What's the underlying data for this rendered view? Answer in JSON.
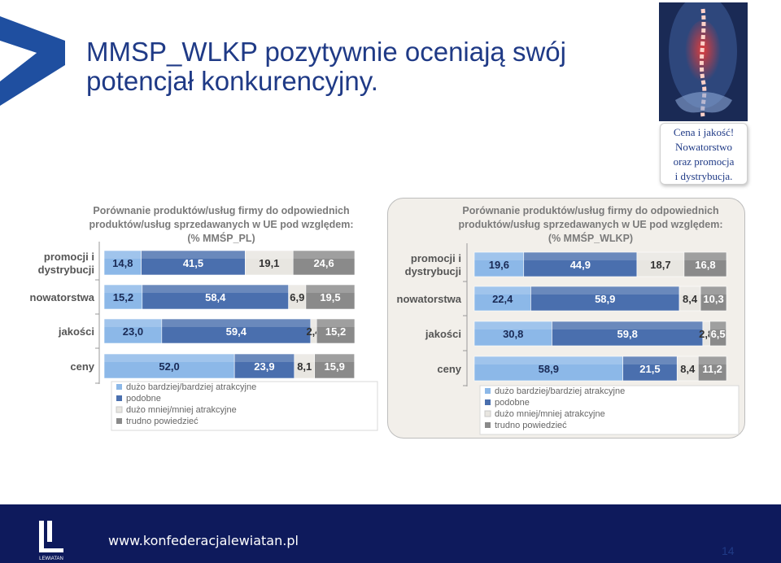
{
  "title": "MMSP_WLKP pozytywnie oceniają swój potencjał konkurencyjny.",
  "callout": [
    "Cena i jakość!",
    "Nowatorstwo",
    "oraz promocja",
    "i dystrybucja."
  ],
  "footer": {
    "url": "www.konfederacjalewiatan.pl",
    "page": "14",
    "logo_text": "LEWIATAN"
  },
  "colors": {
    "series": [
      "#8cb8e8",
      "#4a6fae",
      "#e8e6e1",
      "#8a8a8a"
    ],
    "title": "#1f3a86",
    "footer_bg": "#0e1a5c"
  },
  "chart_data": [
    {
      "type": "bar",
      "orientation": "horizontal",
      "stacked": true,
      "title": "Porównanie produktów/usług firmy do odpowiednich produktów/usług sprzedawanych w UE pod względem: (% MMŚP_PL)",
      "title_lines": [
        "Porównanie produktów/usług firmy do odpowiednich",
        "produktów/usług sprzedawanych w UE pod względem:",
        "(% MMŚP_PL)"
      ],
      "categories": [
        [
          "promocji i",
          "dystrybucji"
        ],
        [
          "nowatorstwa"
        ],
        [
          "jakości"
        ],
        [
          "ceny"
        ]
      ],
      "series": [
        {
          "name": "dużo bardziej/bardziej atrakcyjne",
          "values": [
            14.8,
            15.2,
            23.0,
            52.0
          ],
          "labels": [
            "14,8",
            "15,2",
            "23,0",
            "52,0"
          ]
        },
        {
          "name": "podobne",
          "values": [
            41.5,
            58.4,
            59.4,
            23.9
          ],
          "labels": [
            "41,5",
            "58,4",
            "59,4",
            "23,9"
          ]
        },
        {
          "name": "dużo mniej/mniej atrakcyjne",
          "values": [
            19.1,
            6.9,
            2.4,
            8.1
          ],
          "labels": [
            "19,1",
            "6,9",
            "2,4",
            "8,1"
          ]
        },
        {
          "name": "trudno powiedzieć",
          "values": [
            24.6,
            19.5,
            15.2,
            15.9
          ],
          "labels": [
            "24,6",
            "19,5",
            "15,2",
            "15,9"
          ]
        }
      ],
      "xlim": [
        0,
        100
      ],
      "legend": "bottom"
    },
    {
      "type": "bar",
      "orientation": "horizontal",
      "stacked": true,
      "title": "Porównanie produktów/usług firmy do odpowiednich produktów/usług sprzedawanych w UE pod względem: (% MMŚP_WLKP)",
      "title_lines": [
        "Porównanie produktów/usług firmy do odpowiednich",
        "produktów/usług sprzedawanych w UE pod względem:",
        "(% MMŚP_WLKP)"
      ],
      "categories": [
        [
          "promocji i",
          "dystrybucji"
        ],
        [
          "nowatorstwa"
        ],
        [
          "jakości"
        ],
        [
          "ceny"
        ]
      ],
      "series": [
        {
          "name": "dużo bardziej/bardziej atrakcyjne",
          "values": [
            19.6,
            22.4,
            30.8,
            58.9
          ],
          "labels": [
            "19,6",
            "22,4",
            "30,8",
            "58,9"
          ]
        },
        {
          "name": "podobne",
          "values": [
            44.9,
            58.9,
            59.8,
            21.5
          ],
          "labels": [
            "44,9",
            "58,9",
            "59,8",
            "21,5"
          ]
        },
        {
          "name": "dużo mniej/mniej atrakcyjne",
          "values": [
            18.7,
            8.4,
            2.8,
            8.4
          ],
          "labels": [
            "18,7",
            "8,4",
            "2,8",
            "8,4"
          ]
        },
        {
          "name": "trudno powiedzieć",
          "values": [
            16.8,
            10.3,
            6.5,
            11.2
          ],
          "labels": [
            "16,8",
            "10,3",
            "6,5",
            "11,2"
          ]
        }
      ],
      "xlim": [
        0,
        100
      ],
      "legend": "bottom"
    }
  ]
}
